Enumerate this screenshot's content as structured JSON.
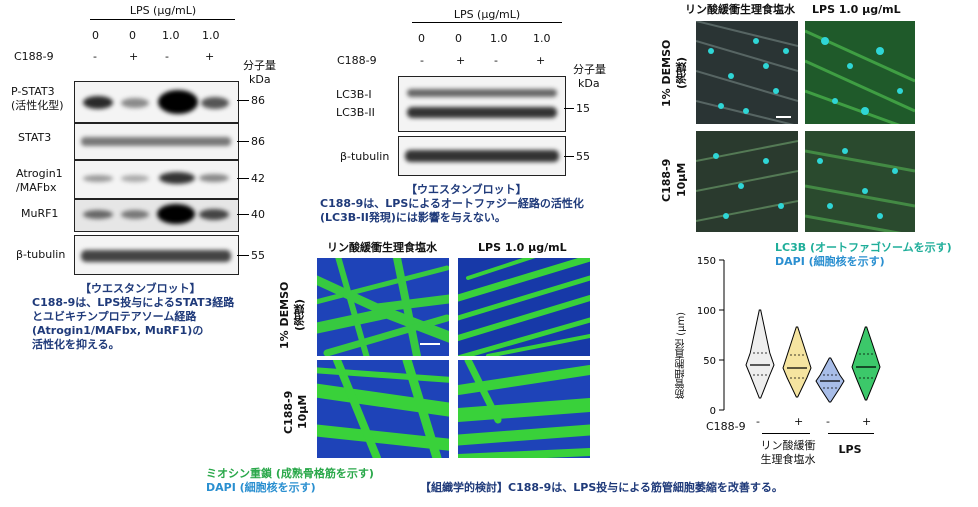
{
  "wbA": {
    "lps_header": "LPS (μg/mL)",
    "lps_vals": [
      "0",
      "0",
      "1.0",
      "1.0"
    ],
    "c188_label": "C188-9",
    "c188_vals": [
      "-",
      "+",
      "-",
      "+"
    ],
    "mw_title_1": "分子量",
    "mw_title_2": "kDa",
    "rows": [
      {
        "label_1": "P-STAT3",
        "label_2": "(活性化型)",
        "mw": "86"
      },
      {
        "label_1": "STAT3",
        "label_2": "",
        "mw": "86"
      },
      {
        "label_1": "Atrogin1",
        "label_2": "/MAFbx",
        "mw": "42"
      },
      {
        "label_1": "MuRF1",
        "label_2": "",
        "mw": "40"
      },
      {
        "label_1": "β-tubulin",
        "label_2": "",
        "mw": "55"
      }
    ],
    "caption_title": "【ウエスタンブロット】",
    "caption_lines": [
      "C188-9は、LPS投与によるSTAT3経路",
      "とユビキチンプロテアソーム経路",
      "(Atrogin1/MAFbx, MuRF1)の",
      "活性化を抑える。"
    ]
  },
  "wbB": {
    "lps_header": "LPS (μg/mL)",
    "lps_vals": [
      "0",
      "0",
      "1.0",
      "1.0"
    ],
    "c188_label": "C188-9",
    "c188_vals": [
      "-",
      "+",
      "-",
      "+"
    ],
    "mw_title_1": "分子量",
    "mw_title_2": "kDa",
    "lc3_1": "LC3B-I",
    "lc3_2": "LC3B-II",
    "lc3_mw": "15",
    "tub_label": "β-tubulin",
    "tub_mw": "55",
    "caption_title": "【ウエスタンブロット】",
    "caption_lines": [
      "C188-9は、LPSによるオートファジー経路の活性化",
      "(LC3B-II発現)には影響を与えない。"
    ]
  },
  "histo": {
    "col1": "リン酸緩衝生理食塩水",
    "col2": "LPS 1.0 μg/mL",
    "row1_1": "1% DEMSO",
    "row1_2": "(溶媒)",
    "row2_1": "C188-9",
    "row2_2": "10μM",
    "legend_1": "ミオシン重鎖 (成熟骨格筋を示す)",
    "legend_2": "DAPI (細胞核を示す)",
    "caption": "【組織学的検討】C188-9は、LPS投与による筋管細胞萎縮を改善する。"
  },
  "topright": {
    "col1": "リン酸緩衝生理食塩水",
    "col2": "LPS 1.0 μg/mL",
    "row1_1": "1% DEMSO",
    "row1_2": "(溶媒)",
    "row2_1": "C188-9",
    "row2_2": "10μM",
    "legend_1": "LC3B (オートファゴソームを示す)",
    "legend_2": "DAPI (細胞核を示す)"
  },
  "chart_data": {
    "type": "violin",
    "ylabel": "筋管細胞直径 (μm)",
    "ylim": [
      0,
      150
    ],
    "yticks": [
      "0",
      "50",
      "100",
      "150"
    ],
    "c188_label": "C188-9",
    "c188_vals": [
      "-",
      "+",
      "-",
      "+"
    ],
    "group_1_line1": "リン酸緩衝",
    "group_1_line2": "生理食塩水",
    "group_2": "LPS",
    "series": [
      {
        "c188": "-",
        "group": "PBS",
        "min": 12,
        "q1": 35,
        "median": 45,
        "q3": 57,
        "max": 100,
        "color": "#eeeeee"
      },
      {
        "c188": "+",
        "group": "PBS",
        "min": 13,
        "q1": 32,
        "median": 42,
        "q3": 55,
        "max": 83,
        "color": "#f5e4a0"
      },
      {
        "c188": "-",
        "group": "LPS",
        "min": 8,
        "q1": 22,
        "median": 29,
        "q3": 35,
        "max": 52,
        "color": "#a8bde8"
      },
      {
        "c188": "+",
        "group": "LPS",
        "min": 10,
        "q1": 32,
        "median": 43,
        "q3": 56,
        "max": 83,
        "color": "#3cc86a"
      }
    ]
  }
}
